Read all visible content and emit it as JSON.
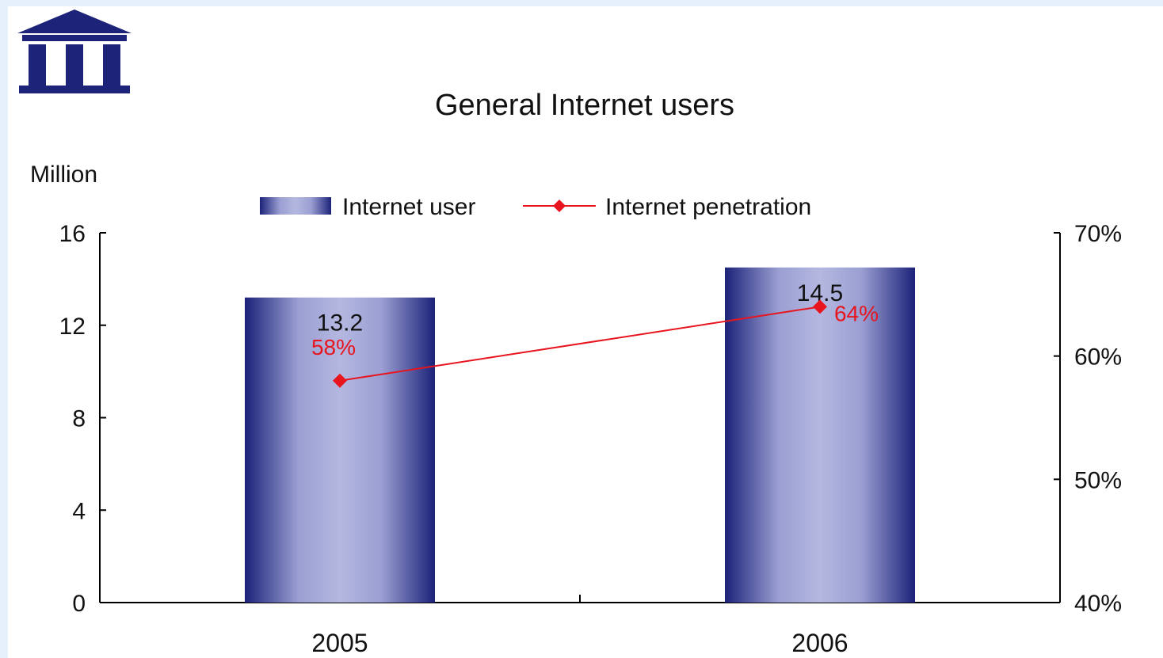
{
  "colors": {
    "bar_dark": "#1c2379",
    "bar_light": "#a6aad6",
    "line": "#e8141e",
    "axis": "#000000",
    "frame": "#e6f0fa"
  },
  "logo": {
    "icon": "building-columns-icon"
  },
  "chart_data": {
    "type": "bar",
    "title": "General Internet users",
    "ylabel": "Million",
    "categories": [
      "2005",
      "2006"
    ],
    "ylim": [
      0,
      16
    ],
    "yticks": [
      "0",
      "4",
      "8",
      "12",
      "16"
    ],
    "y2lim": [
      40,
      70
    ],
    "y2ticks": [
      "40%",
      "50%",
      "60%",
      "70%"
    ],
    "legend_position": "top",
    "grid": false,
    "series": [
      {
        "name": "Internet user",
        "type": "bar",
        "axis": "left",
        "values": [
          13.2,
          14.5
        ],
        "labels": [
          "13.2",
          "14.5"
        ]
      },
      {
        "name": "Internet penetration",
        "type": "line",
        "axis": "right",
        "values": [
          58,
          64
        ],
        "labels": [
          "58%",
          "64%"
        ]
      }
    ]
  }
}
